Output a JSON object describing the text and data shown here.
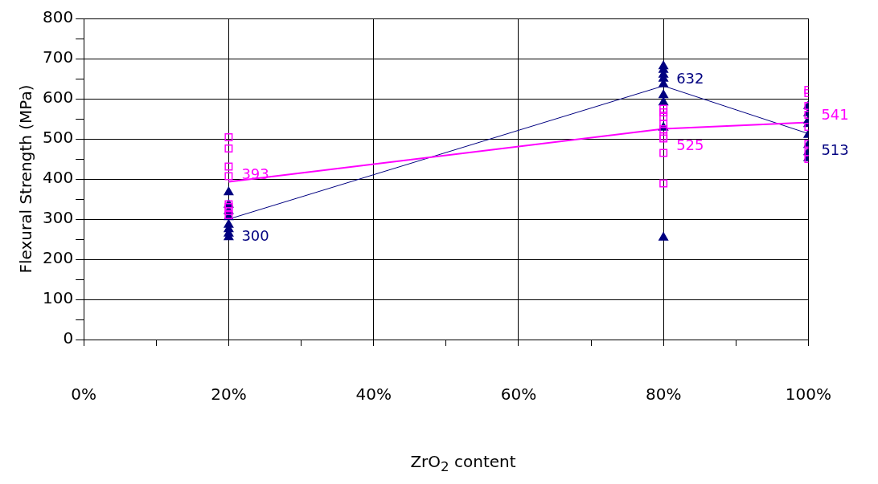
{
  "chart_data": {
    "type": "scatter",
    "xlabel": "ZrO$_{2}$ content",
    "ylabel": "Flexural Strength (MPa)",
    "xlim": [
      0,
      100
    ],
    "xticks": [
      {
        "value": 0,
        "label": "0%"
      },
      {
        "value": 10,
        "label": null
      },
      {
        "value": 20,
        "label": "20%"
      },
      {
        "value": 30,
        "label": null
      },
      {
        "value": 40,
        "label": "40%"
      },
      {
        "value": 50,
        "label": null
      },
      {
        "value": 60,
        "label": "60%"
      },
      {
        "value": 70,
        "label": null
      },
      {
        "value": 80,
        "label": "80%"
      },
      {
        "value": 90,
        "label": null
      },
      {
        "value": 100,
        "label": "100%"
      }
    ],
    "ylim": [
      0,
      800
    ],
    "yticks": [
      0,
      {
        "value": 50,
        "label": null
      },
      100,
      {
        "value": 150,
        "label": null
      },
      200,
      {
        "value": 250,
        "label": null
      },
      300,
      {
        "value": 350,
        "label": null
      },
      400,
      {
        "value": 450,
        "label": null
      },
      500,
      {
        "value": 550,
        "label": null
      },
      600,
      {
        "value": 650,
        "label": null
      },
      700,
      {
        "value": 750,
        "label": null
      },
      800
    ],
    "grid": true,
    "legend": false,
    "series": [
      {
        "type": "scatter",
        "marker": "square",
        "color": "#ff00ff",
        "x": [
          20,
          20,
          20,
          20,
          20,
          20,
          20,
          20,
          80,
          80,
          80,
          80,
          80,
          80,
          80,
          80,
          80,
          100,
          100,
          100,
          100,
          100,
          100,
          100,
          100
        ],
        "values": [
          504,
          476,
          431,
          407,
          337,
          330,
          320,
          310,
          575,
          566,
          555,
          537,
          524,
          506,
          501,
          465,
          389,
          622,
          614,
          582,
          560,
          530,
          488,
          467,
          450
        ]
      },
      {
        "type": "scatter",
        "marker": "triangle",
        "color": "#000080",
        "x": [
          20,
          20,
          20,
          20,
          20,
          20,
          20,
          20,
          80,
          80,
          80,
          80,
          80,
          80,
          80,
          80,
          80,
          100,
          100,
          100,
          100,
          100,
          100,
          100,
          100
        ],
        "values": [
          367,
          336,
          320,
          305,
          286,
          275,
          264,
          255,
          681,
          672,
          660,
          650,
          636,
          609,
          591,
          528,
          254,
          582,
          564,
          546,
          537,
          510,
          485,
          467,
          452
        ]
      },
      {
        "type": "line",
        "marker": "none",
        "color": "#ff00ff",
        "x": [
          20,
          80,
          100
        ],
        "values": [
          393,
          525,
          541
        ],
        "value_labels": [
          "393",
          "525",
          "541"
        ]
      },
      {
        "type": "line",
        "marker": "none",
        "color": "#000080",
        "x": [
          20,
          80,
          100
        ],
        "values": [
          300,
          632,
          513
        ],
        "value_labels": [
          "300",
          "632",
          "513"
        ]
      }
    ]
  }
}
